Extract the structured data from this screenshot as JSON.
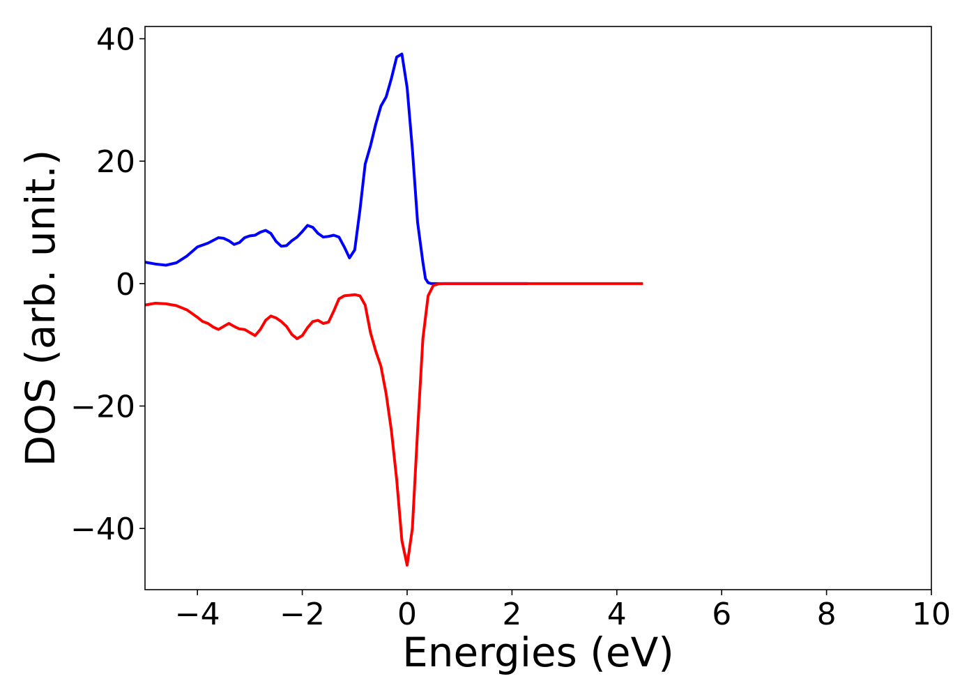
{
  "chart_data": {
    "type": "line",
    "title": "",
    "xlabel": "Energies (eV)",
    "ylabel": "DOS (arb. unit.)",
    "xlim": [
      -5,
      10
    ],
    "ylim": [
      -50,
      42
    ],
    "xticks": [
      -4,
      -2,
      0,
      2,
      4,
      6,
      8,
      10
    ],
    "xtick_labels": [
      "−4",
      "−2",
      "0",
      "2",
      "4",
      "6",
      "8",
      "10"
    ],
    "yticks": [
      -40,
      -20,
      0,
      20,
      40
    ],
    "ytick_labels": [
      "−40",
      "−20",
      "0",
      "20",
      "40"
    ],
    "grid": false,
    "series": [
      {
        "color": "#0000ff",
        "x": [
          -5.0,
          -4.8,
          -4.6,
          -4.4,
          -4.2,
          -4.0,
          -3.8,
          -3.6,
          -3.5,
          -3.4,
          -3.3,
          -3.2,
          -3.1,
          -3.0,
          -2.9,
          -2.8,
          -2.7,
          -2.6,
          -2.5,
          -2.4,
          -2.3,
          -2.2,
          -2.1,
          -2.0,
          -1.9,
          -1.8,
          -1.7,
          -1.6,
          -1.5,
          -1.4,
          -1.3,
          -1.2,
          -1.1,
          -1.0,
          -0.9,
          -0.8,
          -0.7,
          -0.6,
          -0.5,
          -0.4,
          -0.3,
          -0.2,
          -0.1,
          0.0,
          0.1,
          0.2,
          0.3,
          0.35,
          0.4,
          0.45,
          0.5,
          0.6,
          0.7,
          0.8,
          0.9,
          1.0,
          1.1,
          1.2,
          1.5,
          2.0,
          2.3
        ],
        "y": [
          3.5,
          3.2,
          3.0,
          3.4,
          4.5,
          6.0,
          6.6,
          7.5,
          7.4,
          7.0,
          6.4,
          6.7,
          7.5,
          7.8,
          7.9,
          8.4,
          8.7,
          8.2,
          6.9,
          6.1,
          6.2,
          7.0,
          7.6,
          8.5,
          9.5,
          9.2,
          8.2,
          7.6,
          7.7,
          7.9,
          7.6,
          6.0,
          4.2,
          5.5,
          12.0,
          19.5,
          22.5,
          26.0,
          29.0,
          30.5,
          33.5,
          37.0,
          37.5,
          32.0,
          22.0,
          10.0,
          3.5,
          0.8,
          0.15,
          0.02,
          0.0,
          0.0,
          0.0,
          0.0,
          0.0,
          0.0,
          0.0,
          0.0,
          0.0,
          0.0,
          0.0
        ]
      },
      {
        "color": "#ff0000",
        "x": [
          -5.0,
          -4.8,
          -4.6,
          -4.4,
          -4.2,
          -4.0,
          -3.9,
          -3.8,
          -3.7,
          -3.6,
          -3.5,
          -3.4,
          -3.3,
          -3.2,
          -3.1,
          -3.0,
          -2.9,
          -2.8,
          -2.7,
          -2.6,
          -2.5,
          -2.4,
          -2.3,
          -2.2,
          -2.1,
          -2.0,
          -1.9,
          -1.8,
          -1.7,
          -1.6,
          -1.5,
          -1.4,
          -1.3,
          -1.2,
          -1.1,
          -1.0,
          -0.9,
          -0.8,
          -0.7,
          -0.6,
          -0.5,
          -0.4,
          -0.3,
          -0.2,
          -0.1,
          0.0,
          0.1,
          0.2,
          0.3,
          0.4,
          0.5,
          0.6,
          0.7,
          0.8,
          0.9,
          1.0,
          1.1,
          1.2,
          1.3,
          1.4,
          1.5,
          1.6,
          1.7,
          1.8,
          1.9,
          2.0,
          2.1,
          2.2,
          2.3,
          2.4,
          2.6,
          3.0,
          3.5,
          4.0,
          4.5
        ],
        "y": [
          -3.5,
          -3.2,
          -3.3,
          -3.6,
          -4.3,
          -5.5,
          -6.2,
          -6.5,
          -7.1,
          -7.5,
          -7.0,
          -6.5,
          -7.0,
          -7.4,
          -7.5,
          -8.0,
          -8.5,
          -7.5,
          -6.0,
          -5.3,
          -5.6,
          -6.2,
          -7.0,
          -8.3,
          -9.0,
          -8.5,
          -7.2,
          -6.2,
          -6.0,
          -6.5,
          -6.3,
          -4.5,
          -2.5,
          -2.0,
          -1.9,
          -1.8,
          -2.0,
          -3.5,
          -8.0,
          -11.0,
          -13.5,
          -18.0,
          -24.0,
          -32.0,
          -42.0,
          -46.0,
          -40.0,
          -24.0,
          -9.0,
          -2.0,
          -0.3,
          -0.05,
          0.0,
          0.0,
          0.0,
          0.0,
          0.0,
          0.0,
          0.0,
          0.0,
          0.0,
          0.0,
          0.0,
          0.0,
          0.0,
          0.0,
          0.0,
          0.0,
          0.0,
          0.0,
          0.0,
          0.0,
          0.0,
          0.0,
          0.0
        ],
        "x_offset": 1.7
      }
    ]
  }
}
